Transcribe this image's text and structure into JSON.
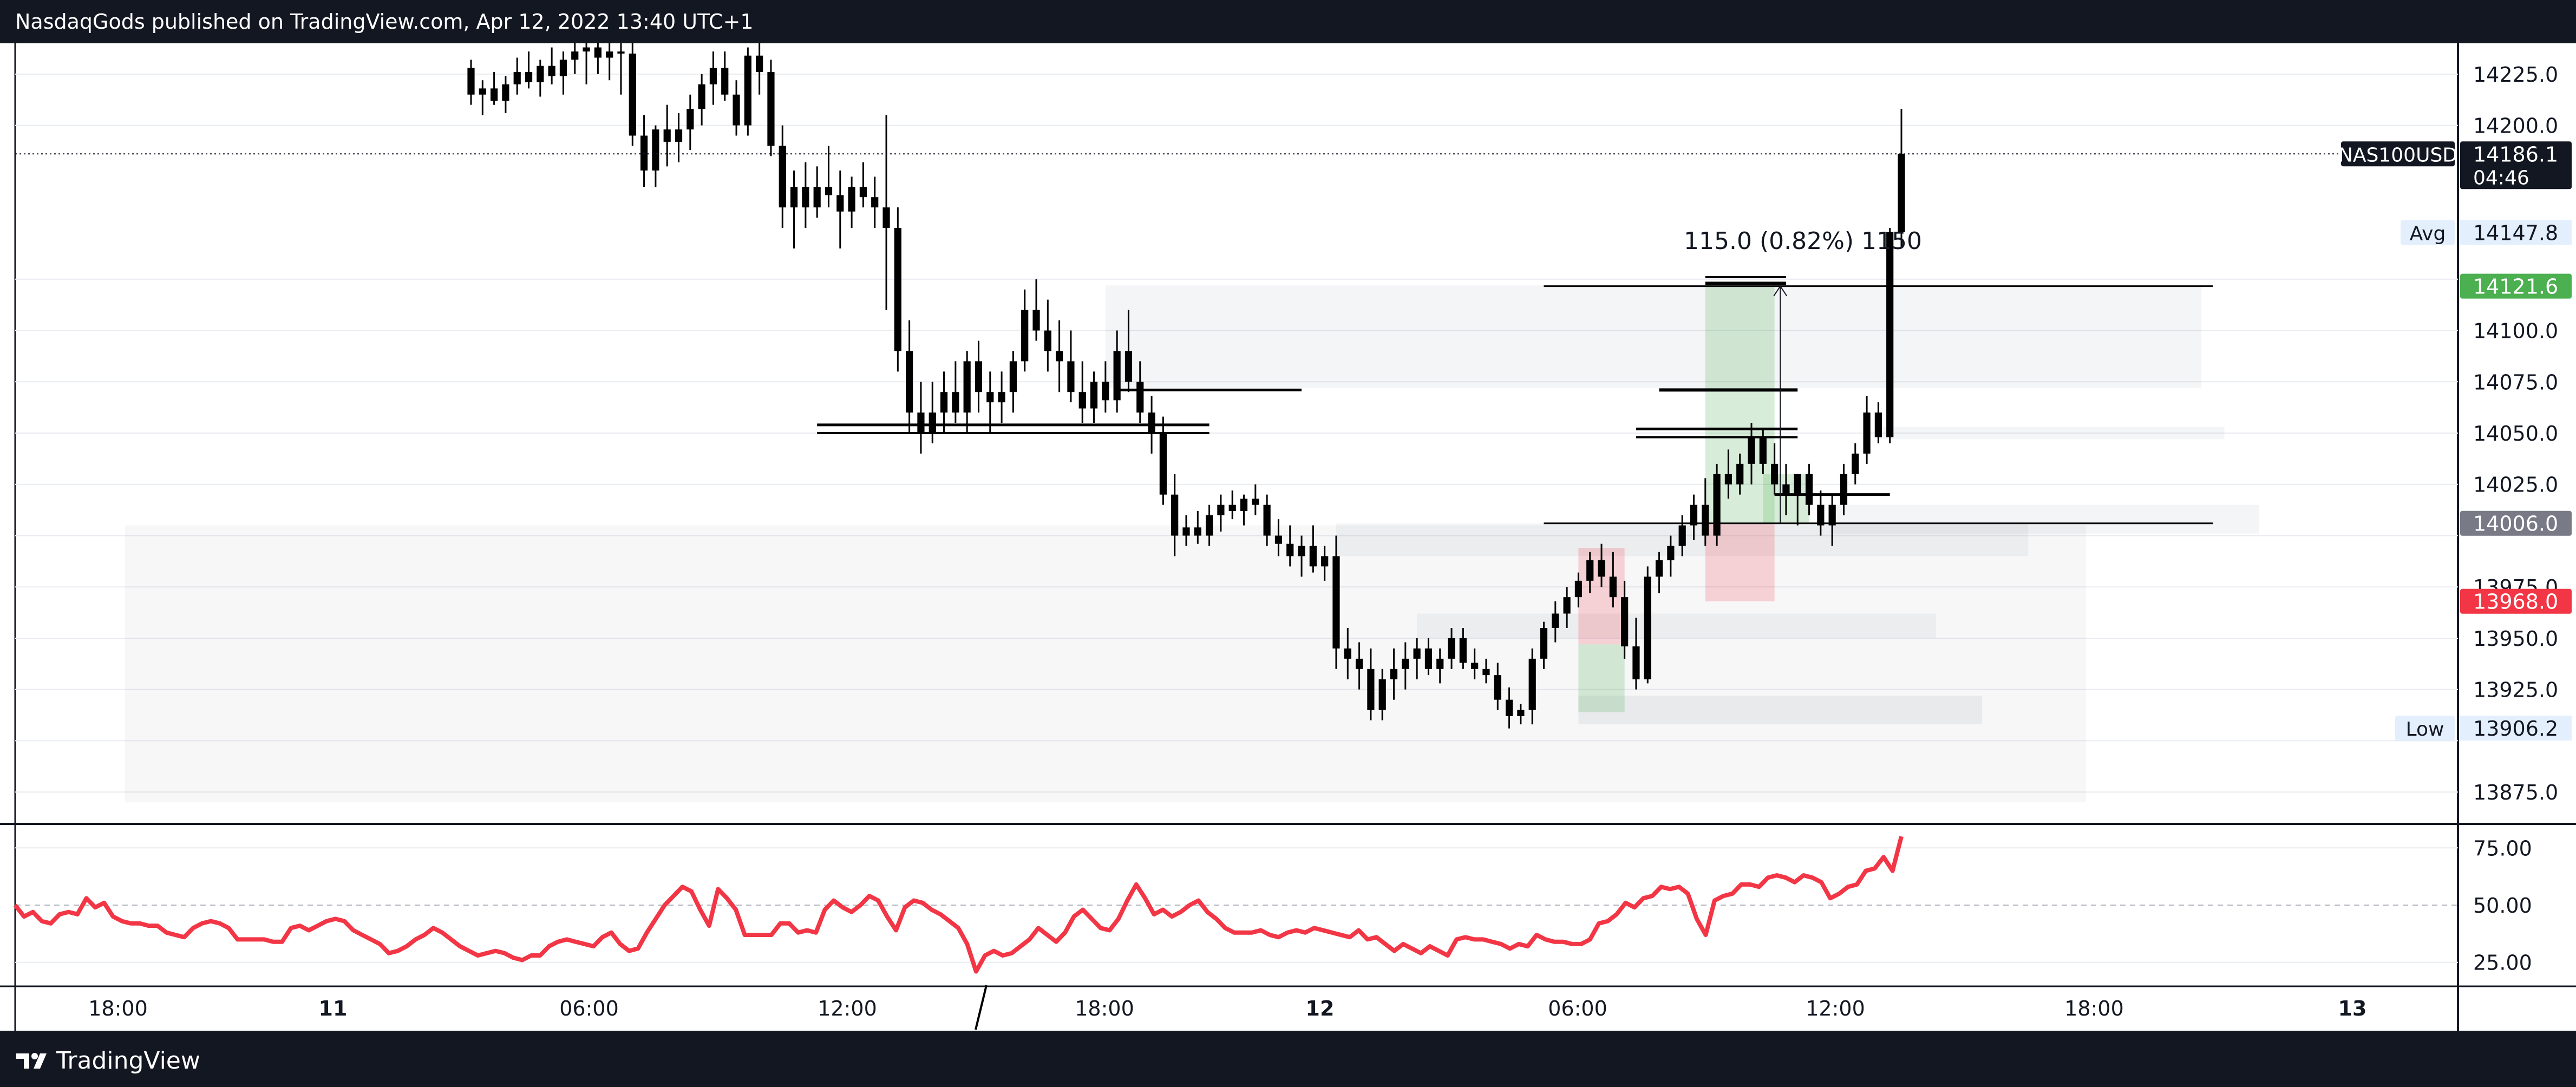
{
  "header": {
    "publisher_line": "NasdaqGods published on TradingView.com, Apr 12, 2022 13:40 UTC+1"
  },
  "footer": {
    "brand": "TradingView"
  },
  "colors": {
    "up": "#000000",
    "down": "#000000",
    "rsi_line": "#f23645",
    "green_tag": "#4caf50",
    "red_tag": "#f23645",
    "grey_tag": "#787b86"
  },
  "chart_data": [
    {
      "type": "candlestick",
      "symbol": "NAS100USD",
      "ylim": [
        13860,
        14240
      ],
      "y_ticks": [
        "14225.0",
        "14200.0",
        "14100.0",
        "14075.0",
        "14050.0",
        "14025.0",
        "13975.0",
        "13950.0",
        "13925.0",
        "13875.0"
      ],
      "x_ticks": [
        "18:00",
        "11",
        "06:00",
        "12:00",
        "18:00",
        "12",
        "06:00",
        "12:00",
        "18:00",
        "13"
      ],
      "price_tags": {
        "last": {
          "label": "NAS100USD",
          "value": "14186.1",
          "countdown": "04:46"
        },
        "avg": {
          "label": "Avg",
          "value": "14147.8"
        },
        "green": {
          "value": "14121.6"
        },
        "grey": {
          "value": "14006.0"
        },
        "red": {
          "value": "13968.0"
        },
        "low": {
          "label": "Low",
          "value": "13906.2"
        }
      },
      "measure_label": "115.0 (0.82%) 1150",
      "candles": [
        [
          14228,
          14232,
          14210,
          14215
        ],
        [
          14215,
          14222,
          14205,
          14218
        ],
        [
          14218,
          14226,
          14210,
          14212
        ],
        [
          14212,
          14224,
          14206,
          14220
        ],
        [
          14220,
          14233,
          14215,
          14226
        ],
        [
          14226,
          14236,
          14218,
          14221
        ],
        [
          14221,
          14232,
          14214,
          14229
        ],
        [
          14229,
          14238,
          14220,
          14224
        ],
        [
          14224,
          14236,
          14215,
          14232
        ],
        [
          14232,
          14240,
          14225,
          14236
        ],
        [
          14236,
          14240,
          14220,
          14238
        ],
        [
          14238,
          14240,
          14225,
          14233
        ],
        [
          14233,
          14240,
          14222,
          14236
        ],
        [
          14236,
          14240,
          14215,
          14235
        ],
        [
          14235,
          14240,
          14190,
          14195
        ],
        [
          14195,
          14205,
          14170,
          14178
        ],
        [
          14178,
          14200,
          14170,
          14198
        ],
        [
          14198,
          14210,
          14180,
          14192
        ],
        [
          14192,
          14206,
          14182,
          14198
        ],
        [
          14198,
          14215,
          14188,
          14208
        ],
        [
          14208,
          14225,
          14200,
          14220
        ],
        [
          14220,
          14236,
          14210,
          14228
        ],
        [
          14228,
          14236,
          14212,
          14215
        ],
        [
          14215,
          14222,
          14195,
          14200
        ],
        [
          14200,
          14238,
          14195,
          14234
        ],
        [
          14234,
          14240,
          14215,
          14226
        ],
        [
          14226,
          14232,
          14185,
          14190
        ],
        [
          14190,
          14200,
          14150,
          14160
        ],
        [
          14160,
          14178,
          14140,
          14170
        ],
        [
          14170,
          14182,
          14150,
          14160
        ],
        [
          14160,
          14180,
          14155,
          14170
        ],
        [
          14170,
          14190,
          14160,
          14166
        ],
        [
          14166,
          14178,
          14140,
          14158
        ],
        [
          14158,
          14175,
          14150,
          14170
        ],
        [
          14170,
          14182,
          14160,
          14165
        ],
        [
          14165,
          14175,
          14150,
          14160
        ],
        [
          14160,
          14205,
          14110,
          14150
        ],
        [
          14150,
          14160,
          14080,
          14090
        ],
        [
          14090,
          14105,
          14050,
          14060
        ],
        [
          14060,
          14075,
          14040,
          14050
        ],
        [
          14050,
          14075,
          14045,
          14060
        ],
        [
          14060,
          14080,
          14050,
          14070
        ],
        [
          14070,
          14085,
          14055,
          14060
        ],
        [
          14060,
          14090,
          14050,
          14085
        ],
        [
          14085,
          14095,
          14060,
          14070
        ],
        [
          14070,
          14080,
          14050,
          14065
        ],
        [
          14065,
          14080,
          14055,
          14070
        ],
        [
          14070,
          14090,
          14060,
          14085
        ],
        [
          14085,
          14120,
          14080,
          14110
        ],
        [
          14110,
          14125,
          14095,
          14100
        ],
        [
          14100,
          14115,
          14080,
          14090
        ],
        [
          14090,
          14105,
          14070,
          14085
        ],
        [
          14085,
          14100,
          14065,
          14070
        ],
        [
          14070,
          14085,
          14055,
          14062
        ],
        [
          14062,
          14080,
          14055,
          14075
        ],
        [
          14075,
          14085,
          14060,
          14066
        ],
        [
          14066,
          14100,
          14060,
          14090
        ],
        [
          14090,
          14110,
          14070,
          14075
        ],
        [
          14075,
          14085,
          14055,
          14060
        ],
        [
          14060,
          14068,
          14040,
          14050
        ],
        [
          14050,
          14058,
          14015,
          14020
        ],
        [
          14020,
          14030,
          13990,
          14000
        ],
        [
          14000,
          14010,
          13995,
          14004
        ],
        [
          14004,
          14012,
          13996,
          14000
        ],
        [
          14000,
          14015,
          13995,
          14010
        ],
        [
          14010,
          14020,
          14002,
          14015
        ],
        [
          14015,
          14022,
          14008,
          14012
        ],
        [
          14012,
          14020,
          14005,
          14018
        ],
        [
          14018,
          14025,
          14010,
          14015
        ],
        [
          14015,
          14020,
          13995,
          14000
        ],
        [
          14000,
          14008,
          13990,
          13996
        ],
        [
          13996,
          14005,
          13985,
          13990
        ],
        [
          13990,
          14000,
          13980,
          13995
        ],
        [
          13995,
          14005,
          13982,
          13985
        ],
        [
          13985,
          13995,
          13978,
          13990
        ],
        [
          13990,
          14000,
          13935,
          13945
        ],
        [
          13945,
          13955,
          13930,
          13940
        ],
        [
          13940,
          13948,
          13925,
          13935
        ],
        [
          13935,
          13945,
          13910,
          13915
        ],
        [
          13915,
          13935,
          13910,
          13930
        ],
        [
          13930,
          13945,
          13920,
          13935
        ],
        [
          13935,
          13948,
          13925,
          13940
        ],
        [
          13940,
          13950,
          13930,
          13945
        ],
        [
          13945,
          13950,
          13932,
          13935
        ],
        [
          13935,
          13945,
          13928,
          13940
        ],
        [
          13940,
          13955,
          13935,
          13950
        ],
        [
          13950,
          13955,
          13935,
          13938
        ],
        [
          13938,
          13945,
          13930,
          13935
        ],
        [
          13935,
          13940,
          13928,
          13932
        ],
        [
          13932,
          13938,
          13915,
          13920
        ],
        [
          13920,
          13926,
          13906,
          13912
        ],
        [
          13912,
          13918,
          13908,
          13915
        ],
        [
          13915,
          13945,
          13908,
          13940
        ],
        [
          13940,
          13958,
          13935,
          13955
        ],
        [
          13955,
          13968,
          13948,
          13962
        ],
        [
          13962,
          13975,
          13955,
          13970
        ],
        [
          13970,
          13982,
          13965,
          13978
        ],
        [
          13978,
          13992,
          13972,
          13988
        ],
        [
          13988,
          13996,
          13975,
          13980
        ],
        [
          13980,
          13992,
          13965,
          13970
        ],
        [
          13970,
          13978,
          13940,
          13946
        ],
        [
          13946,
          13960,
          13925,
          13930
        ],
        [
          13930,
          13985,
          13928,
          13980
        ],
        [
          13980,
          13992,
          13972,
          13988
        ],
        [
          13988,
          14000,
          13980,
          13995
        ],
        [
          13995,
          14010,
          13990,
          14005
        ],
        [
          14005,
          14020,
          13998,
          14015
        ],
        [
          14015,
          14028,
          13995,
          14000
        ],
        [
          14000,
          14035,
          13995,
          14030
        ],
        [
          14030,
          14042,
          14018,
          14025
        ],
        [
          14025,
          14040,
          14020,
          14035
        ],
        [
          14035,
          14055,
          14025,
          14048
        ],
        [
          14048,
          14052,
          14030,
          14035
        ],
        [
          14035,
          14045,
          14020,
          14025
        ],
        [
          14025,
          14035,
          14010,
          14020
        ],
        [
          14020,
          14030,
          14005,
          14030
        ],
        [
          14030,
          14035,
          14010,
          14015
        ],
        [
          14015,
          14022,
          14000,
          14005
        ],
        [
          14005,
          14020,
          13995,
          14015
        ],
        [
          14015,
          14035,
          14010,
          14030
        ],
        [
          14030,
          14045,
          14025,
          14040
        ],
        [
          14040,
          14068,
          14035,
          14060
        ],
        [
          14060,
          14065,
          14045,
          14048
        ],
        [
          14048,
          14150,
          14045,
          14148
        ],
        [
          14148,
          14208,
          14140,
          14186.1
        ]
      ]
    },
    {
      "type": "line",
      "name": "RSI",
      "ylim": [
        15,
        85
      ],
      "y_ticks": [
        "75.00",
        "50.00",
        "25.00"
      ],
      "values": [
        50,
        45,
        47,
        43,
        42,
        46,
        47,
        46,
        53,
        49,
        51,
        45,
        43,
        42,
        42,
        41,
        41,
        38,
        37,
        36,
        40,
        42,
        43,
        42,
        40,
        35,
        35,
        35,
        35,
        34,
        34,
        40,
        41,
        39,
        41,
        43,
        44,
        43,
        39,
        37,
        35,
        33,
        29,
        30,
        32,
        35,
        37,
        40,
        38,
        35,
        32,
        30,
        28,
        29,
        30,
        29,
        27,
        26,
        28,
        28,
        32,
        34,
        35,
        34,
        33,
        32,
        36,
        38,
        33,
        30,
        31,
        38,
        44,
        50,
        54,
        58,
        56,
        48,
        41,
        57,
        53,
        48,
        37,
        37,
        37,
        37,
        42,
        42,
        38,
        39,
        38,
        48,
        52,
        49,
        47,
        50,
        54,
        52,
        45,
        39,
        49,
        52,
        51,
        48,
        46,
        43,
        40,
        33,
        21,
        28,
        30,
        28,
        29,
        32,
        35,
        40,
        37,
        34,
        38,
        45,
        48,
        44,
        40,
        39,
        44,
        52,
        59,
        53,
        46,
        48,
        45,
        47,
        50,
        52,
        47,
        44,
        40,
        38,
        38,
        38,
        39,
        37,
        36,
        38,
        39,
        38,
        40,
        39,
        38,
        37,
        36,
        39,
        35,
        36,
        33,
        30,
        33,
        31,
        29,
        32,
        30,
        28,
        35,
        36,
        35,
        35,
        34,
        33,
        31,
        33,
        32,
        37,
        35,
        34,
        34,
        33,
        33,
        35,
        42,
        43,
        46,
        51,
        49,
        53,
        54,
        58,
        57,
        58,
        55,
        44,
        37,
        52,
        54,
        55,
        59,
        59,
        58,
        62,
        63,
        62,
        60,
        63,
        62,
        60,
        53,
        55,
        58,
        59,
        65,
        66,
        71,
        65,
        80
      ]
    }
  ]
}
